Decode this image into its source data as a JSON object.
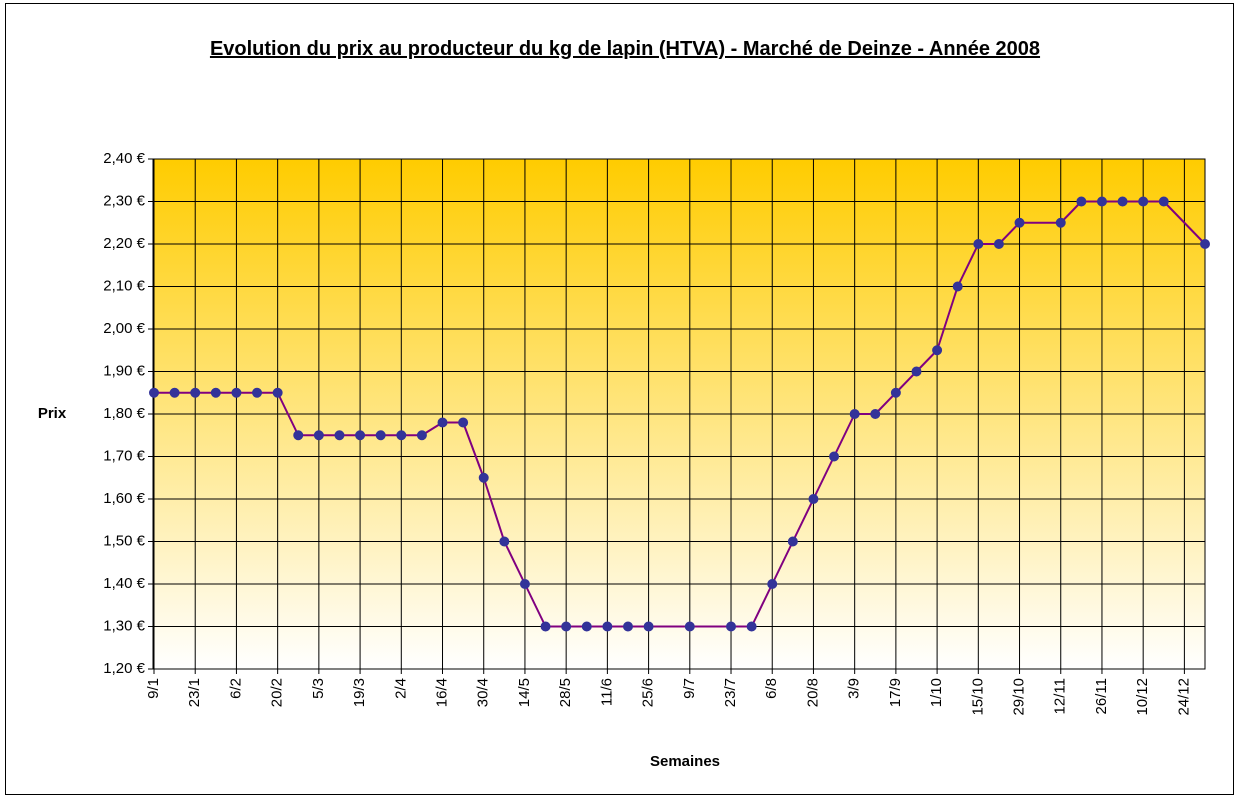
{
  "chart_data": {
    "type": "line",
    "title": "Evolution du prix au producteur du kg de lapin (HTVA) - Marché de Deinze - Année 2008",
    "x_label": "Semaines",
    "y_label": "Prix",
    "categories": [
      "9/1",
      null,
      "23/1",
      null,
      "6/2",
      null,
      "20/2",
      null,
      "5/3",
      null,
      "19/3",
      null,
      "2/4",
      null,
      "16/4",
      null,
      "30/4",
      null,
      "14/5",
      null,
      "28/5",
      null,
      "11/6",
      null,
      "25/6",
      null,
      "9/7",
      null,
      "23/7",
      null,
      "6/8",
      null,
      "20/8",
      null,
      "3/9",
      null,
      "17/9",
      null,
      "1/10",
      null,
      "15/10",
      null,
      "29/10",
      null,
      "12/11",
      null,
      "26/11",
      null,
      "10/12",
      null,
      "24/12",
      null
    ],
    "series": [
      {
        "name": "Prix",
        "color": "#800080",
        "marker_color": "#333399",
        "values": [
          1.85,
          1.85,
          1.85,
          1.85,
          1.85,
          1.85,
          1.85,
          1.75,
          1.75,
          1.75,
          1.75,
          1.75,
          1.75,
          1.75,
          1.78,
          1.78,
          1.65,
          1.5,
          1.4,
          1.3,
          1.3,
          1.3,
          1.3,
          1.3,
          1.3,
          null,
          1.3,
          null,
          1.3,
          1.3,
          1.4,
          1.5,
          1.6,
          1.7,
          1.8,
          1.8,
          1.85,
          1.9,
          1.95,
          2.1,
          2.2,
          2.2,
          2.25,
          null,
          2.25,
          2.3,
          2.3,
          2.3,
          2.3,
          2.3,
          null,
          2.2
        ]
      }
    ],
    "ylim": [
      1.2,
      2.4
    ],
    "yticks": [
      {
        "value": 1.2,
        "label": "1,20 €"
      },
      {
        "value": 1.3,
        "label": "1,30 €"
      },
      {
        "value": 1.4,
        "label": "1,40 €"
      },
      {
        "value": 1.5,
        "label": "1,50 €"
      },
      {
        "value": 1.6,
        "label": "1,60 €"
      },
      {
        "value": 1.7,
        "label": "1,70 €"
      },
      {
        "value": 1.8,
        "label": "1,80 €"
      },
      {
        "value": 1.9,
        "label": "1,90 €"
      },
      {
        "value": 2.0,
        "label": "2,00 €"
      },
      {
        "value": 2.1,
        "label": "2,10 €"
      },
      {
        "value": 2.2,
        "label": "2,20 €"
      },
      {
        "value": 2.3,
        "label": "2,30 €"
      },
      {
        "value": 2.4,
        "label": "2,40 €"
      }
    ],
    "grid": true,
    "background_gradient": [
      "#ffcc00",
      "#ffffff"
    ]
  }
}
